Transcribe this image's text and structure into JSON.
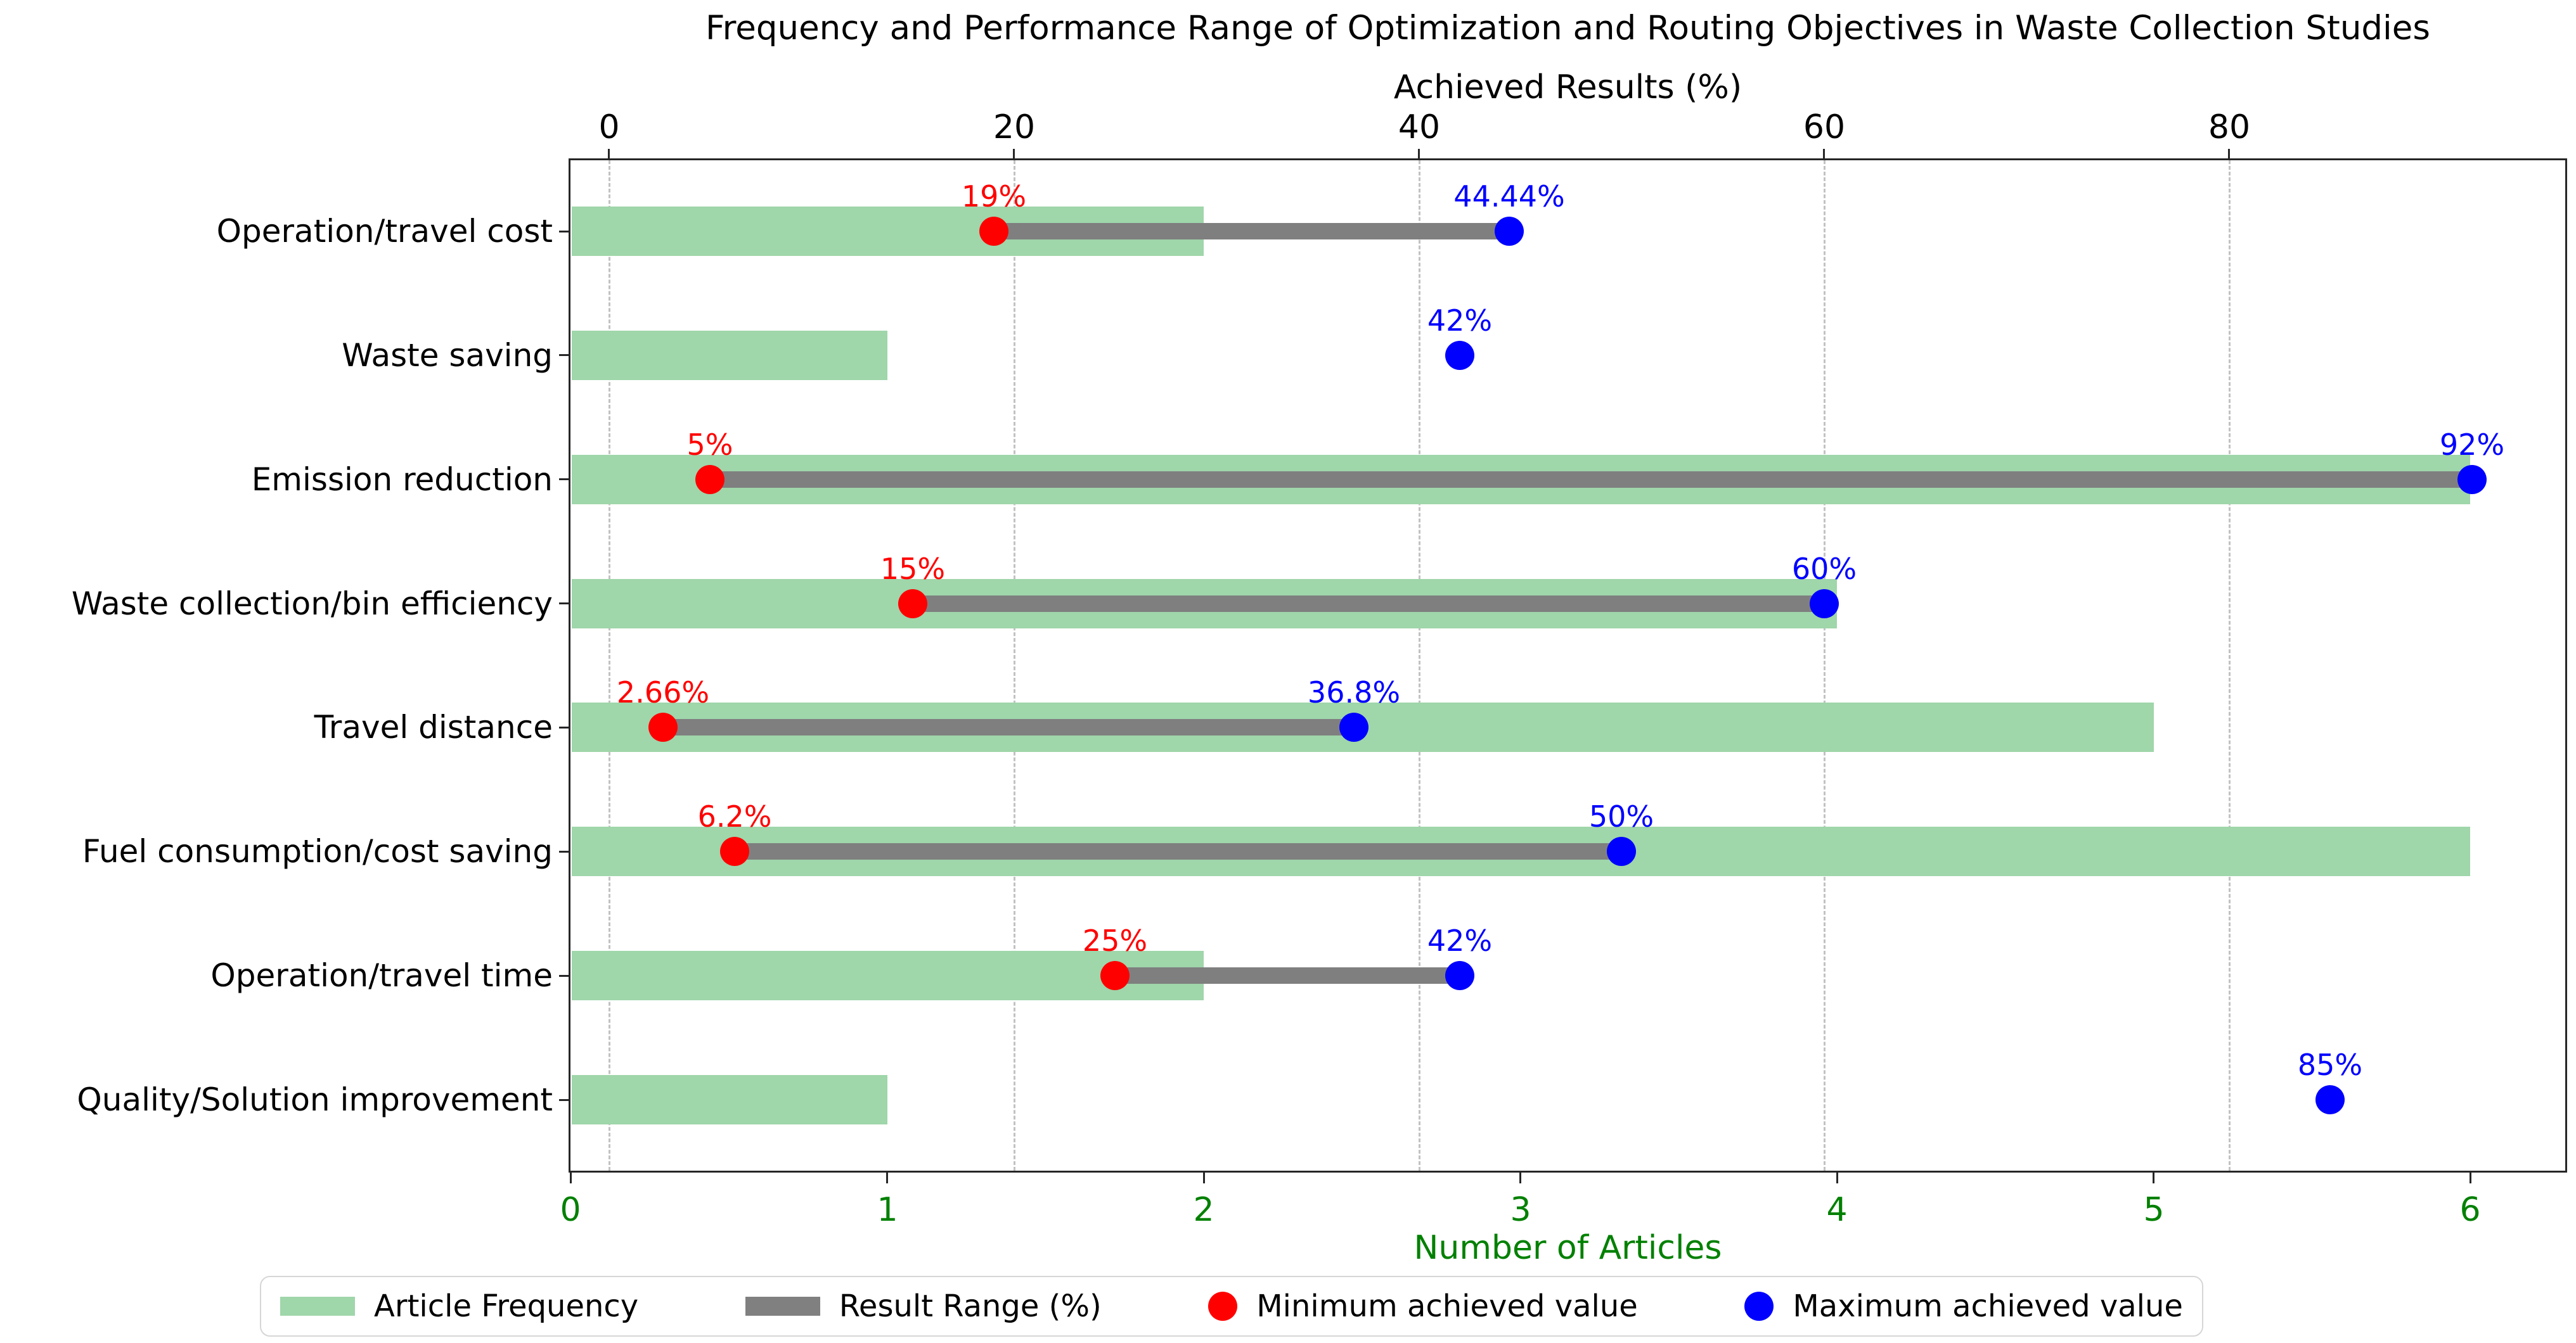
{
  "title": "Frequency and Performance Range of Optimization and Routing Objectives in Waste Collection Studies",
  "chart_data": {
    "type": "bar",
    "orientation": "horizontal-dumbbell",
    "categories": [
      "Operation/travel cost",
      "Waste saving",
      "Emission reduction",
      "Waste collection/bin efficiency",
      "Travel distance",
      "Fuel consumption/cost saving",
      "Operation/travel time",
      "Quality/Solution improvement"
    ],
    "series": [
      {
        "name": "Article Frequency",
        "axis": "bottom",
        "values": [
          2,
          1,
          6,
          4,
          5,
          6,
          2,
          1
        ]
      },
      {
        "name": "Result Range (%)",
        "axis": "top",
        "min": [
          19,
          null,
          5,
          15,
          2.66,
          6.2,
          25,
          null
        ],
        "max": [
          44.44,
          42,
          92,
          60,
          36.8,
          50,
          42,
          85
        ]
      }
    ],
    "point_labels": {
      "min": [
        "19%",
        "",
        "5%",
        "15%",
        "2.66%",
        "6.2%",
        "25%",
        ""
      ],
      "max": [
        "44.44%",
        "42%",
        "92%",
        "60%",
        "36.8%",
        "50%",
        "42%",
        "85%"
      ]
    },
    "top_axis": {
      "label": "Achieved Results (%)",
      "ticks": [
        "0",
        "20",
        "40",
        "60",
        "80"
      ],
      "tick_values": [
        0,
        20,
        40,
        60,
        80
      ],
      "range": [
        -1.9,
        96.6
      ]
    },
    "bottom_axis": {
      "label": "Number of Articles",
      "ticks": [
        "0",
        "1",
        "2",
        "3",
        "4",
        "5",
        "6"
      ],
      "tick_values": [
        0,
        1,
        2,
        3,
        4,
        5,
        6
      ],
      "range": [
        0,
        6.3
      ]
    },
    "grid": {
      "style": "dashed",
      "axis": "top",
      "color": "#c2c2c2"
    },
    "legend": [
      {
        "label": "Article Frequency",
        "swatch": "bar",
        "color": "#9fd6aa"
      },
      {
        "label": "Result Range (%)",
        "swatch": "bar",
        "color": "#808080"
      },
      {
        "label": "Minimum achieved value",
        "swatch": "dot",
        "color": "#ff0000"
      },
      {
        "label": "Maximum achieved value",
        "swatch": "dot",
        "color": "#0000ff"
      }
    ]
  },
  "colors": {
    "bar_green": "#9fd6aa",
    "range_gray": "#7f7f7f",
    "min_red": "#ff0000",
    "max_blue": "#0000ff",
    "bottom_axis_green": "#008000",
    "grid": "#c2c2c2",
    "spine": "#262626"
  }
}
